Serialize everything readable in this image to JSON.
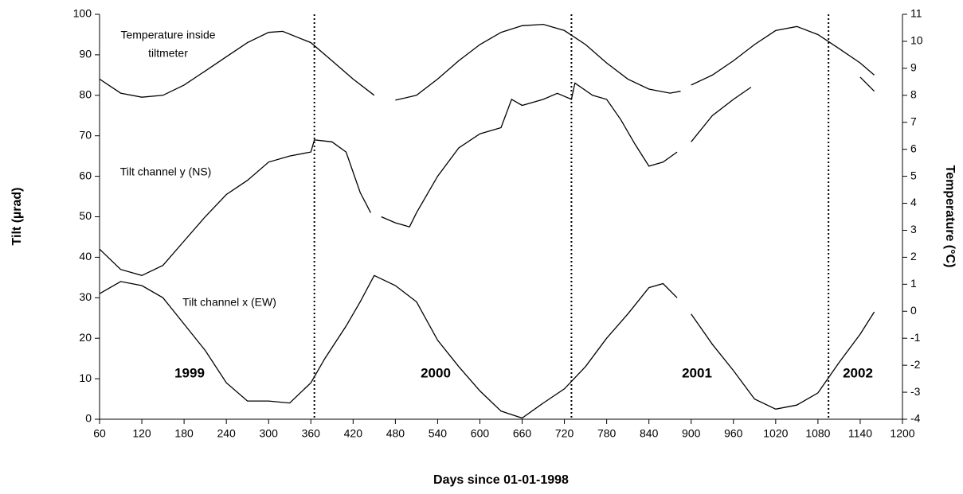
{
  "chart_data": {
    "type": "line",
    "x_label": "Days since 01-01-1998",
    "y_label": "Tilt (µrad)",
    "y2_label": "Temperature (°C)",
    "xlim": [
      60,
      1200
    ],
    "xticks": [
      60,
      120,
      180,
      240,
      300,
      360,
      420,
      480,
      540,
      600,
      660,
      720,
      780,
      840,
      900,
      960,
      1020,
      1080,
      1140,
      1200
    ],
    "ylim": [
      0,
      100
    ],
    "yticks": [
      0,
      10,
      20,
      30,
      40,
      50,
      60,
      70,
      80,
      90,
      100
    ],
    "y2lim": [
      -4,
      11
    ],
    "y2ticks": [
      -4,
      -3,
      -2,
      -1,
      0,
      1,
      2,
      3,
      4,
      5,
      6,
      7,
      8,
      9,
      10,
      11
    ],
    "vlines": [
      365,
      730,
      1095
    ],
    "annotations": [
      "Temperature inside",
      "tiltmeter",
      "Tilt channel y (NS)",
      "Tilt channel x (EW)"
    ],
    "year_labels": [
      "1999",
      "2000",
      "2001",
      "2002"
    ],
    "series": [
      {
        "name": "Temperature inside tiltmeter",
        "color": "#000000",
        "axis": "y2",
        "x": [
          60,
          90,
          120,
          150,
          180,
          210,
          240,
          270,
          300,
          320,
          360,
          390,
          420,
          450,
          460,
          480,
          510,
          540,
          570,
          600,
          630,
          660,
          690,
          720,
          750,
          780,
          810,
          840,
          870,
          885,
          890,
          900,
          930,
          960,
          990,
          1020,
          1050,
          1080,
          1110,
          1140,
          1160
        ],
        "values": [
          8.6,
          8.08,
          7.93,
          8.0,
          8.38,
          8.9,
          9.43,
          9.95,
          10.33,
          10.37,
          9.95,
          9.28,
          8.6,
          8.0,
          null,
          7.82,
          8.0,
          8.6,
          9.28,
          9.88,
          10.33,
          10.58,
          10.63,
          10.4,
          9.88,
          9.2,
          8.6,
          8.23,
          8.08,
          8.15,
          null,
          8.38,
          8.75,
          9.28,
          9.88,
          10.4,
          10.55,
          10.25,
          9.73,
          9.2,
          8.75
        ]
      },
      {
        "name": "Tilt channel y (NS)",
        "color": "#000000",
        "x": [
          60,
          90,
          120,
          150,
          180,
          210,
          240,
          270,
          300,
          330,
          360,
          365,
          390,
          410,
          430,
          445,
          452,
          460,
          480,
          500,
          510,
          540,
          570,
          600,
          630,
          645,
          660,
          690,
          710,
          730,
          735,
          760,
          780,
          800,
          820,
          840,
          860,
          880,
          890,
          900,
          930,
          960,
          985,
          1000,
          1140,
          1160
        ],
        "values": [
          42,
          37,
          35.5,
          38,
          44,
          50,
          55.5,
          59,
          63.5,
          65,
          66,
          69,
          68.5,
          66,
          56,
          51,
          null,
          50,
          48.5,
          47.5,
          51,
          60,
          67,
          70.5,
          72,
          79,
          77.5,
          79,
          80.5,
          79,
          83,
          80,
          79,
          74,
          68,
          62.5,
          63.5,
          66,
          null,
          68.5,
          75,
          79,
          82,
          null,
          84.5,
          81
        ]
      },
      {
        "name": "Tilt channel x (EW)",
        "color": "#000000",
        "x": [
          60,
          90,
          120,
          150,
          180,
          210,
          240,
          270,
          300,
          330,
          360,
          380,
          410,
          430,
          450,
          480,
          510,
          540,
          570,
          600,
          630,
          660,
          690,
          720,
          750,
          780,
          810,
          840,
          860,
          880,
          890,
          900,
          930,
          960,
          990,
          1020,
          1050,
          1080,
          1110,
          1140,
          1160
        ],
        "values": [
          31,
          34,
          33,
          30,
          23.5,
          17,
          9,
          4.5,
          4.5,
          4,
          9,
          15,
          23,
          29,
          35.5,
          33,
          29,
          19.5,
          13,
          7,
          2,
          0.3,
          4,
          7.5,
          13,
          20,
          26,
          32.5,
          33.5,
          30,
          null,
          26,
          18.5,
          12,
          5,
          2.5,
          3.5,
          6.5,
          14,
          21,
          26.5
        ]
      }
    ]
  }
}
